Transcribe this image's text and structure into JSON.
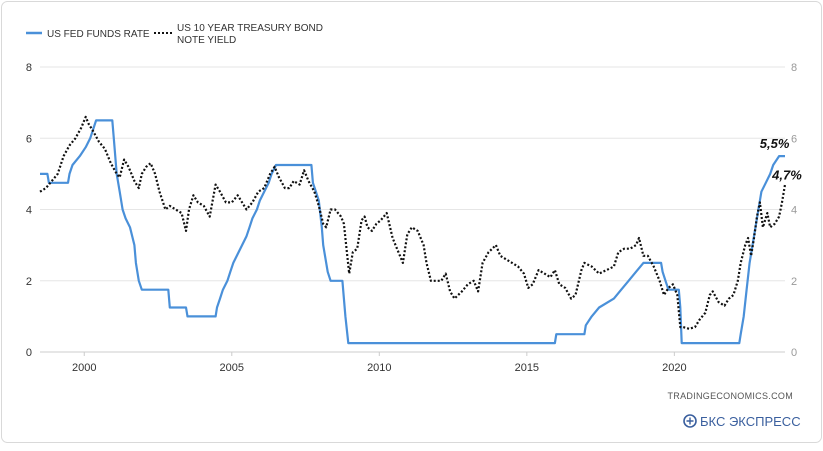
{
  "chart_data": {
    "type": "line",
    "title": "",
    "xlabel": "",
    "ylabel": "",
    "xlim": [
      1998.5,
      2023.75
    ],
    "ylim": [
      0,
      8
    ],
    "x_ticks": [
      2000,
      2005,
      2010,
      2015,
      2020
    ],
    "x_tick_labels": [
      "2000",
      "2005",
      "2010",
      "2015",
      "2020"
    ],
    "y_ticks": [
      0,
      2,
      4,
      6,
      8
    ],
    "y_tick_labels": [
      "0",
      "2",
      "4",
      "6",
      "8"
    ],
    "grid": {
      "horizontal": true,
      "vertical": false
    },
    "legend_position": "top-left",
    "series": [
      {
        "name": "US FED FUNDS RATE",
        "color": "#4a90d9",
        "style": "solid",
        "points": [
          [
            1998.5,
            5.0
          ],
          [
            1998.75,
            5.0
          ],
          [
            1998.8,
            4.75
          ],
          [
            1999.45,
            4.75
          ],
          [
            1999.5,
            5.0
          ],
          [
            1999.6,
            5.25
          ],
          [
            1999.85,
            5.5
          ],
          [
            2000.05,
            5.75
          ],
          [
            2000.2,
            6.0
          ],
          [
            2000.4,
            6.5
          ],
          [
            2000.95,
            6.5
          ],
          [
            2001.0,
            6.0
          ],
          [
            2001.1,
            5.0
          ],
          [
            2001.2,
            4.5
          ],
          [
            2001.3,
            4.0
          ],
          [
            2001.4,
            3.75
          ],
          [
            2001.55,
            3.5
          ],
          [
            2001.7,
            3.0
          ],
          [
            2001.75,
            2.5
          ],
          [
            2001.85,
            2.0
          ],
          [
            2001.95,
            1.75
          ],
          [
            2002.85,
            1.75
          ],
          [
            2002.9,
            1.25
          ],
          [
            2003.45,
            1.25
          ],
          [
            2003.5,
            1.0
          ],
          [
            2004.45,
            1.0
          ],
          [
            2004.5,
            1.25
          ],
          [
            2004.6,
            1.5
          ],
          [
            2004.7,
            1.75
          ],
          [
            2004.85,
            2.0
          ],
          [
            2004.95,
            2.25
          ],
          [
            2005.05,
            2.5
          ],
          [
            2005.2,
            2.75
          ],
          [
            2005.35,
            3.0
          ],
          [
            2005.5,
            3.25
          ],
          [
            2005.6,
            3.5
          ],
          [
            2005.7,
            3.75
          ],
          [
            2005.85,
            4.0
          ],
          [
            2005.95,
            4.25
          ],
          [
            2006.1,
            4.5
          ],
          [
            2006.25,
            4.75
          ],
          [
            2006.35,
            5.0
          ],
          [
            2006.5,
            5.25
          ],
          [
            2007.7,
            5.25
          ],
          [
            2007.75,
            4.75
          ],
          [
            2007.85,
            4.5
          ],
          [
            2007.95,
            4.25
          ],
          [
            2008.05,
            3.5
          ],
          [
            2008.1,
            3.0
          ],
          [
            2008.25,
            2.25
          ],
          [
            2008.35,
            2.0
          ],
          [
            2008.75,
            2.0
          ],
          [
            2008.8,
            1.5
          ],
          [
            2008.85,
            1.0
          ],
          [
            2008.95,
            0.25
          ],
          [
            2015.95,
            0.25
          ],
          [
            2016.0,
            0.5
          ],
          [
            2016.95,
            0.5
          ],
          [
            2017.0,
            0.75
          ],
          [
            2017.2,
            1.0
          ],
          [
            2017.45,
            1.25
          ],
          [
            2017.95,
            1.5
          ],
          [
            2018.2,
            1.75
          ],
          [
            2018.45,
            2.0
          ],
          [
            2018.7,
            2.25
          ],
          [
            2018.95,
            2.5
          ],
          [
            2019.55,
            2.5
          ],
          [
            2019.6,
            2.25
          ],
          [
            2019.7,
            2.0
          ],
          [
            2019.8,
            1.75
          ],
          [
            2020.15,
            1.75
          ],
          [
            2020.2,
            1.25
          ],
          [
            2020.25,
            0.25
          ],
          [
            2022.2,
            0.25
          ],
          [
            2022.25,
            0.5
          ],
          [
            2022.35,
            1.0
          ],
          [
            2022.45,
            1.75
          ],
          [
            2022.55,
            2.5
          ],
          [
            2022.7,
            3.25
          ],
          [
            2022.85,
            4.0
          ],
          [
            2022.95,
            4.5
          ],
          [
            2023.1,
            4.75
          ],
          [
            2023.25,
            5.0
          ],
          [
            2023.35,
            5.25
          ],
          [
            2023.55,
            5.5
          ],
          [
            2023.75,
            5.5
          ]
        ]
      },
      {
        "name": "US 10 YEAR TREASURY BOND NOTE YIELD",
        "color": "#111111",
        "style": "dotted",
        "points": [
          [
            1998.5,
            4.5
          ],
          [
            1998.7,
            4.6
          ],
          [
            1998.9,
            4.8
          ],
          [
            1999.1,
            5.0
          ],
          [
            1999.3,
            5.5
          ],
          [
            1999.5,
            5.8
          ],
          [
            1999.7,
            6.0
          ],
          [
            1999.9,
            6.3
          ],
          [
            2000.05,
            6.6
          ],
          [
            2000.15,
            6.4
          ],
          [
            2000.3,
            6.2
          ],
          [
            2000.5,
            5.9
          ],
          [
            2000.7,
            5.7
          ],
          [
            2000.9,
            5.3
          ],
          [
            2001.1,
            5.0
          ],
          [
            2001.2,
            4.9
          ],
          [
            2001.35,
            5.4
          ],
          [
            2001.5,
            5.2
          ],
          [
            2001.7,
            4.8
          ],
          [
            2001.85,
            4.6
          ],
          [
            2001.95,
            5.0
          ],
          [
            2002.1,
            5.2
          ],
          [
            2002.25,
            5.3
          ],
          [
            2002.4,
            5.0
          ],
          [
            2002.55,
            4.5
          ],
          [
            2002.75,
            4.0
          ],
          [
            2002.9,
            4.1
          ],
          [
            2003.1,
            4.0
          ],
          [
            2003.3,
            3.9
          ],
          [
            2003.45,
            3.4
          ],
          [
            2003.55,
            4.0
          ],
          [
            2003.7,
            4.4
          ],
          [
            2003.85,
            4.2
          ],
          [
            2004.05,
            4.1
          ],
          [
            2004.25,
            3.8
          ],
          [
            2004.45,
            4.7
          ],
          [
            2004.6,
            4.5
          ],
          [
            2004.8,
            4.2
          ],
          [
            2005.0,
            4.2
          ],
          [
            2005.2,
            4.4
          ],
          [
            2005.35,
            4.2
          ],
          [
            2005.5,
            4.0
          ],
          [
            2005.7,
            4.2
          ],
          [
            2005.9,
            4.5
          ],
          [
            2006.1,
            4.6
          ],
          [
            2006.3,
            5.0
          ],
          [
            2006.45,
            5.2
          ],
          [
            2006.6,
            4.9
          ],
          [
            2006.8,
            4.6
          ],
          [
            2006.95,
            4.6
          ],
          [
            2007.1,
            4.8
          ],
          [
            2007.3,
            4.7
          ],
          [
            2007.45,
            5.1
          ],
          [
            2007.6,
            4.8
          ],
          [
            2007.8,
            4.5
          ],
          [
            2007.95,
            4.1
          ],
          [
            2008.1,
            3.6
          ],
          [
            2008.2,
            3.5
          ],
          [
            2008.35,
            4.0
          ],
          [
            2008.5,
            4.0
          ],
          [
            2008.7,
            3.8
          ],
          [
            2008.8,
            3.6
          ],
          [
            2008.9,
            2.8
          ],
          [
            2008.98,
            2.2
          ],
          [
            2009.1,
            2.8
          ],
          [
            2009.25,
            2.9
          ],
          [
            2009.4,
            3.7
          ],
          [
            2009.5,
            3.8
          ],
          [
            2009.6,
            3.5
          ],
          [
            2009.75,
            3.4
          ],
          [
            2009.9,
            3.6
          ],
          [
            2010.05,
            3.7
          ],
          [
            2010.25,
            3.9
          ],
          [
            2010.45,
            3.2
          ],
          [
            2010.6,
            2.9
          ],
          [
            2010.8,
            2.5
          ],
          [
            2010.95,
            3.3
          ],
          [
            2011.1,
            3.5
          ],
          [
            2011.3,
            3.4
          ],
          [
            2011.5,
            3.0
          ],
          [
            2011.6,
            2.5
          ],
          [
            2011.75,
            2.0
          ],
          [
            2011.95,
            2.0
          ],
          [
            2012.1,
            2.0
          ],
          [
            2012.25,
            2.2
          ],
          [
            2012.4,
            1.7
          ],
          [
            2012.55,
            1.5
          ],
          [
            2012.8,
            1.7
          ],
          [
            2013.0,
            1.9
          ],
          [
            2013.2,
            2.0
          ],
          [
            2013.35,
            1.7
          ],
          [
            2013.5,
            2.5
          ],
          [
            2013.7,
            2.8
          ],
          [
            2013.95,
            3.0
          ],
          [
            2014.1,
            2.7
          ],
          [
            2014.3,
            2.6
          ],
          [
            2014.5,
            2.5
          ],
          [
            2014.7,
            2.4
          ],
          [
            2014.9,
            2.2
          ],
          [
            2015.05,
            1.8
          ],
          [
            2015.2,
            1.9
          ],
          [
            2015.4,
            2.3
          ],
          [
            2015.6,
            2.2
          ],
          [
            2015.8,
            2.1
          ],
          [
            2015.95,
            2.3
          ],
          [
            2016.1,
            1.9
          ],
          [
            2016.3,
            1.8
          ],
          [
            2016.5,
            1.5
          ],
          [
            2016.65,
            1.6
          ],
          [
            2016.85,
            2.3
          ],
          [
            2016.95,
            2.5
          ],
          [
            2017.2,
            2.4
          ],
          [
            2017.45,
            2.2
          ],
          [
            2017.7,
            2.3
          ],
          [
            2017.95,
            2.4
          ],
          [
            2018.1,
            2.8
          ],
          [
            2018.3,
            2.9
          ],
          [
            2018.5,
            2.9
          ],
          [
            2018.7,
            3.0
          ],
          [
            2018.8,
            3.2
          ],
          [
            2018.95,
            2.7
          ],
          [
            2019.1,
            2.7
          ],
          [
            2019.3,
            2.4
          ],
          [
            2019.5,
            2.0
          ],
          [
            2019.65,
            1.6
          ],
          [
            2019.8,
            1.8
          ],
          [
            2019.95,
            1.9
          ],
          [
            2020.1,
            1.6
          ],
          [
            2020.2,
            0.7
          ],
          [
            2020.3,
            0.7
          ],
          [
            2020.5,
            0.65
          ],
          [
            2020.7,
            0.7
          ],
          [
            2020.85,
            0.9
          ],
          [
            2021.05,
            1.1
          ],
          [
            2021.2,
            1.6
          ],
          [
            2021.3,
            1.7
          ],
          [
            2021.5,
            1.4
          ],
          [
            2021.7,
            1.3
          ],
          [
            2021.85,
            1.5
          ],
          [
            2022.0,
            1.6
          ],
          [
            2022.15,
            2.0
          ],
          [
            2022.25,
            2.5
          ],
          [
            2022.4,
            3.0
          ],
          [
            2022.5,
            3.2
          ],
          [
            2022.6,
            2.7
          ],
          [
            2022.7,
            3.2
          ],
          [
            2022.8,
            3.8
          ],
          [
            2022.9,
            4.2
          ],
          [
            2023.0,
            3.5
          ],
          [
            2023.15,
            3.9
          ],
          [
            2023.25,
            3.5
          ],
          [
            2023.4,
            3.6
          ],
          [
            2023.55,
            3.8
          ],
          [
            2023.65,
            4.2
          ],
          [
            2023.75,
            4.7
          ]
        ]
      }
    ],
    "annotations": [
      {
        "text": "5,5%",
        "x": 2023.6,
        "y": 5.5,
        "series": 0
      },
      {
        "text": "4,7%",
        "x": 2023.75,
        "y": 4.7,
        "series": 1
      }
    ]
  },
  "legend": {
    "items": [
      {
        "label_lines": [
          "US FED FUNDS RATE"
        ],
        "color": "#4a90d9",
        "style": "solid"
      },
      {
        "label_lines": [
          "US 10 YEAR TREASURY BOND",
          "NOTE YIELD"
        ],
        "color": "#111111",
        "style": "dotted"
      }
    ]
  },
  "footer": {
    "source": "TRADINGECONOMICS.COM",
    "brand": "БКС ЭКСПРЕСС",
    "brand_color": "#3a5f9e"
  }
}
